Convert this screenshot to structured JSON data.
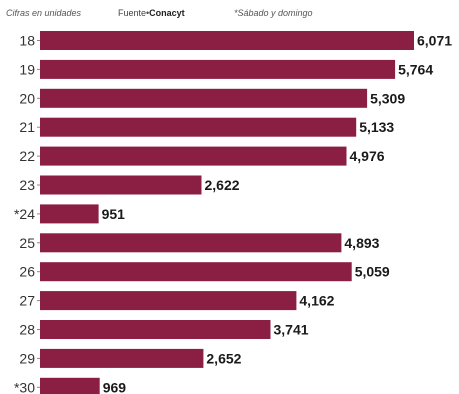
{
  "notes": {
    "units": "Cifras en unidades",
    "source_prefix": "Fuente•",
    "source_name": "Conacyt",
    "weekend": "*Sábado y domingo"
  },
  "chart_data": {
    "type": "bar",
    "orientation": "horizontal",
    "categories": [
      "18",
      "19",
      "20",
      "21",
      "22",
      "23",
      "*24",
      "25",
      "26",
      "27",
      "28",
      "29",
      "*30"
    ],
    "values": [
      6071,
      5764,
      5309,
      5133,
      4976,
      2622,
      951,
      4893,
      5059,
      4162,
      3741,
      2652,
      969
    ],
    "value_labels": [
      "6,071",
      "5,764",
      "5,309",
      "5,133",
      "4,976",
      "2,622",
      "951",
      "4,893",
      "5,059",
      "4,162",
      "3,741",
      "2,652",
      "969"
    ],
    "title": "",
    "xlabel": "",
    "ylabel": "",
    "bar_color": "#8b1e43",
    "grid": false,
    "legend": "none"
  }
}
